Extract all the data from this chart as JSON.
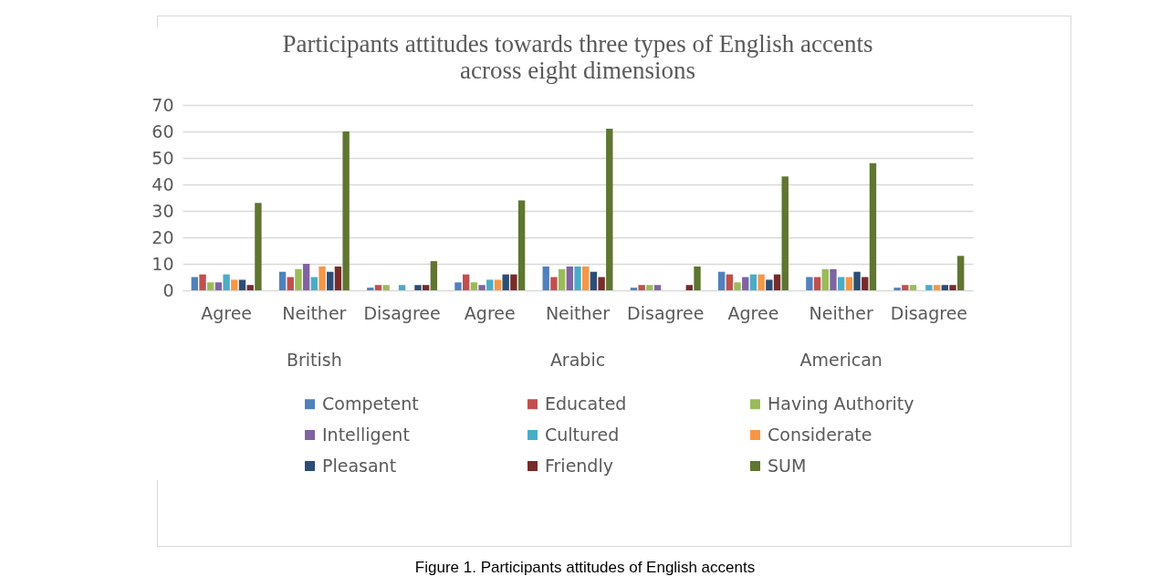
{
  "chart_data": {
    "type": "bar",
    "title": "Participants attitudes towards three types of English accents\nacross eight dimensions",
    "categories": [
      "Agree",
      "Neither",
      "Disagree",
      "Agree",
      "Neither",
      "Disagree",
      "Agree",
      "Neither",
      "Disagree"
    ],
    "series": [
      {
        "name": "Competent",
        "color": "#4f81bd",
        "values": [
          5,
          7,
          1,
          3,
          9,
          1,
          7,
          5,
          1
        ]
      },
      {
        "name": "Educated",
        "color": "#c0504d",
        "values": [
          6,
          5,
          2,
          6,
          5,
          2,
          6,
          5,
          2
        ]
      },
      {
        "name": "Having Authority",
        "color": "#9bbb59",
        "values": [
          3,
          8,
          2,
          3,
          8,
          2,
          3,
          8,
          2
        ]
      },
      {
        "name": "Intelligent",
        "color": "#8064a2",
        "values": [
          3,
          10,
          0,
          2,
          9,
          2,
          5,
          8,
          0
        ]
      },
      {
        "name": "Cultured",
        "color": "#4bacc6",
        "values": [
          6,
          5,
          2,
          4,
          9,
          0,
          6,
          5,
          2
        ]
      },
      {
        "name": "Considerate",
        "color": "#f79646",
        "values": [
          4,
          9,
          0,
          4,
          9,
          0,
          6,
          5,
          2
        ]
      },
      {
        "name": "Pleasant",
        "color": "#2c4d75",
        "values": [
          4,
          7,
          2,
          6,
          7,
          0,
          4,
          7,
          2
        ]
      },
      {
        "name": "Friendly",
        "color": "#772c2a",
        "values": [
          2,
          9,
          2,
          6,
          5,
          2,
          6,
          5,
          2
        ]
      },
      {
        "name": "SUM",
        "color": "#5f7530",
        "values": [
          33,
          60,
          11,
          34,
          61,
          9,
          43,
          48,
          13
        ]
      }
    ],
    "ylim": [
      0,
      70
    ],
    "yticks": [
      0,
      10,
      20,
      30,
      40,
      50,
      60,
      70
    ],
    "grid": "y",
    "legend": "bottom",
    "annotations": [
      "British",
      "Arabic",
      "American",
      "Figure 1. Participants attitudes of English accents"
    ]
  }
}
